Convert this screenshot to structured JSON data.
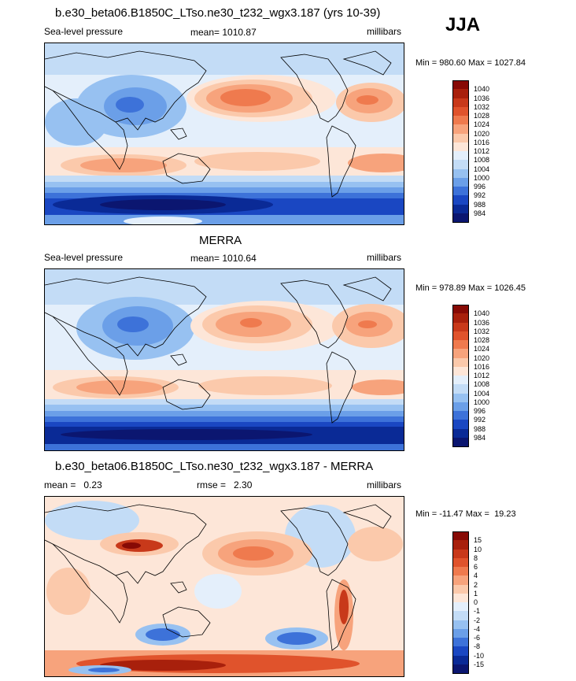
{
  "season": "JJA",
  "panels": [
    {
      "title": "b.e30_beta06.B1850C_LTso.ne30_t232_wgx3.187 (yrs 10-39)",
      "left": "Sea-level pressure",
      "center": "mean= 1010.87",
      "right": "millibars",
      "minmax": "Min = 980.60 Max = 1027.84",
      "colorbar": {
        "labels": [
          "1040",
          "1036",
          "1032",
          "1028",
          "1024",
          "1020",
          "1016",
          "1012",
          "1008",
          "1004",
          "1000",
          "996",
          "992",
          "988",
          "984"
        ],
        "colors": [
          "#870a05",
          "#a8200c",
          "#c8391a",
          "#e0532c",
          "#ef7a4e",
          "#f7a37c",
          "#fbc9ab",
          "#fde6d8",
          "#e4effb",
          "#c3dcf6",
          "#97c1f1",
          "#6b9fe8",
          "#3d72d9",
          "#1a47c2",
          "#0a2a96",
          "#0b1670"
        ]
      }
    },
    {
      "title": "MERRA",
      "left": "Sea-level pressure",
      "center": "mean= 1010.64",
      "right": "millibars",
      "minmax": "Min = 978.89 Max = 1026.45",
      "colorbar": {
        "labels": [
          "1040",
          "1036",
          "1032",
          "1028",
          "1024",
          "1020",
          "1016",
          "1012",
          "1008",
          "1004",
          "1000",
          "996",
          "992",
          "988",
          "984"
        ],
        "colors": [
          "#870a05",
          "#a8200c",
          "#c8391a",
          "#e0532c",
          "#ef7a4e",
          "#f7a37c",
          "#fbc9ab",
          "#fde6d8",
          "#e4effb",
          "#c3dcf6",
          "#97c1f1",
          "#6b9fe8",
          "#3d72d9",
          "#1a47c2",
          "#0a2a96",
          "#0b1670"
        ]
      }
    },
    {
      "title": "b.e30_beta06.B1850C_LTso.ne30_t232_wgx3.187 - MERRA",
      "left": "mean =   0.23",
      "center": "rmse =   2.30",
      "right": "millibars",
      "minmax": "Min = -11.47 Max =  19.23",
      "colorbar": {
        "labels": [
          "15",
          "10",
          "8",
          "6",
          "4",
          "2",
          "1",
          "0",
          "-1",
          "-2",
          "-4",
          "-6",
          "-8",
          "-10",
          "-15"
        ],
        "colors": [
          "#870a05",
          "#a8200c",
          "#c8391a",
          "#e0532c",
          "#ef7a4e",
          "#f7a37c",
          "#fbc9ab",
          "#fde6d8",
          "#e4effb",
          "#c3dcf6",
          "#97c1f1",
          "#6b9fe8",
          "#3d72d9",
          "#1a47c2",
          "#0a2a96",
          "#0b1670"
        ]
      }
    }
  ]
}
